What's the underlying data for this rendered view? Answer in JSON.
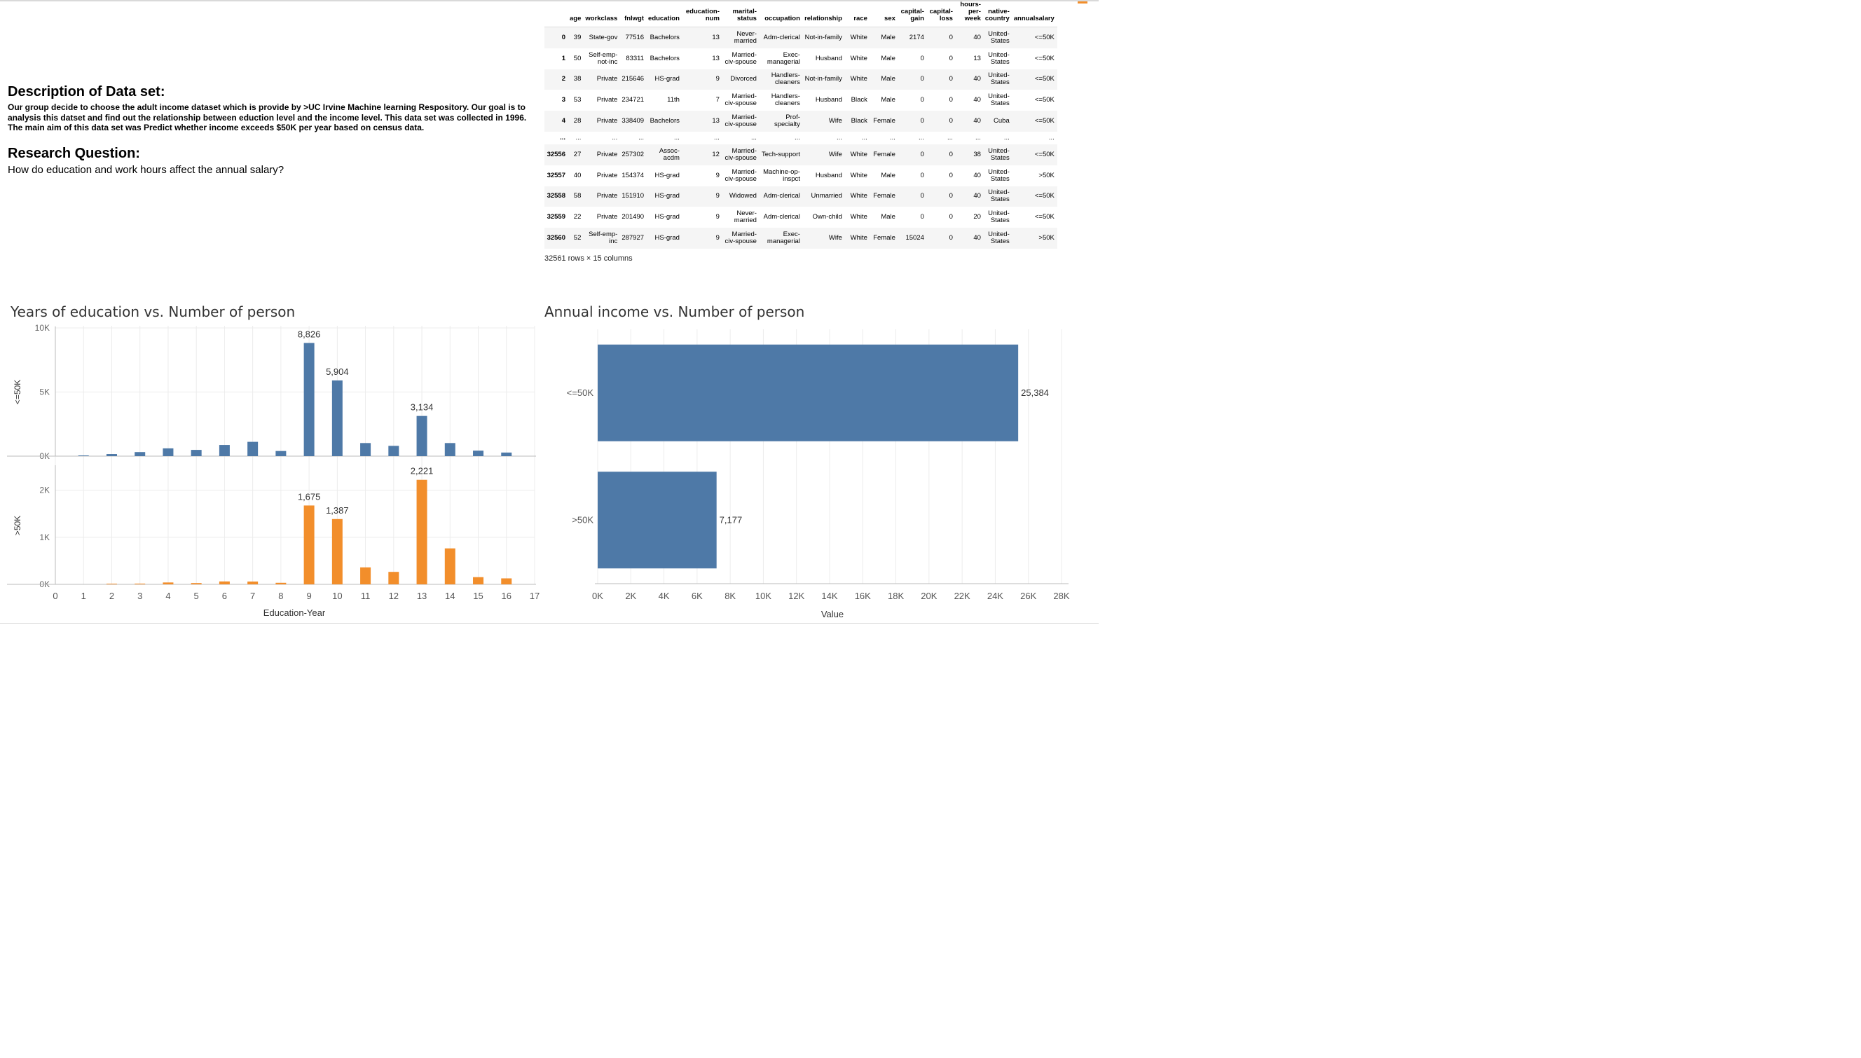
{
  "description": {
    "heading": "Description of Data set:",
    "body": "Our group decide to choose the adult income dataset which is provide by >UC Irvine Machine learning Respository. Our goal is to analysis this datset and find out the relationship between eduction level and the income level.  This data set was collected in 1996. The main aim of this data set was Predict whether income exceeds $50K per year based on census data.",
    "rq_heading": "Research Question:",
    "rq_body": "How do education and work hours affect the annual salary?"
  },
  "table": {
    "columns": [
      "",
      "age",
      "workclass",
      "fnlwgt",
      "education",
      "education-num",
      "marital-status",
      "occupation",
      "relationship",
      "race",
      "sex",
      "capital-gain",
      "capital-loss",
      "hours-per-week",
      "native-country",
      "annualsalary"
    ],
    "rows": [
      [
        "0",
        "39",
        "State-gov",
        "77516",
        "Bachelors",
        "13",
        "Never-married",
        "Adm-clerical",
        "Not-in-family",
        "White",
        "Male",
        "2174",
        "0",
        "40",
        "United-States",
        "<=50K"
      ],
      [
        "1",
        "50",
        "Self-emp-not-inc",
        "83311",
        "Bachelors",
        "13",
        "Married-civ-spouse",
        "Exec-managerial",
        "Husband",
        "White",
        "Male",
        "0",
        "0",
        "13",
        "United-States",
        "<=50K"
      ],
      [
        "2",
        "38",
        "Private",
        "215646",
        "HS-grad",
        "9",
        "Divorced",
        "Handlers-cleaners",
        "Not-in-family",
        "White",
        "Male",
        "0",
        "0",
        "40",
        "United-States",
        "<=50K"
      ],
      [
        "3",
        "53",
        "Private",
        "234721",
        "11th",
        "7",
        "Married-civ-spouse",
        "Handlers-cleaners",
        "Husband",
        "Black",
        "Male",
        "0",
        "0",
        "40",
        "United-States",
        "<=50K"
      ],
      [
        "4",
        "28",
        "Private",
        "338409",
        "Bachelors",
        "13",
        "Married-civ-spouse",
        "Prof-specialty",
        "Wife",
        "Black",
        "Female",
        "0",
        "0",
        "40",
        "Cuba",
        "<=50K"
      ],
      [
        "...",
        "...",
        "...",
        "...",
        "...",
        "...",
        "...",
        "...",
        "...",
        "...",
        "...",
        "...",
        "...",
        "...",
        "...",
        "..."
      ],
      [
        "32556",
        "27",
        "Private",
        "257302",
        "Assoc-acdm",
        "12",
        "Married-civ-spouse",
        "Tech-support",
        "Wife",
        "White",
        "Female",
        "0",
        "0",
        "38",
        "United-States",
        "<=50K"
      ],
      [
        "32557",
        "40",
        "Private",
        "154374",
        "HS-grad",
        "9",
        "Married-civ-spouse",
        "Machine-op-inspct",
        "Husband",
        "White",
        "Male",
        "0",
        "0",
        "40",
        "United-States",
        ">50K"
      ],
      [
        "32558",
        "58",
        "Private",
        "151910",
        "HS-grad",
        "9",
        "Widowed",
        "Adm-clerical",
        "Unmarried",
        "White",
        "Female",
        "0",
        "0",
        "40",
        "United-States",
        "<=50K"
      ],
      [
        "32559",
        "22",
        "Private",
        "201490",
        "HS-grad",
        "9",
        "Never-married",
        "Adm-clerical",
        "Own-child",
        "White",
        "Male",
        "0",
        "0",
        "20",
        "United-States",
        "<=50K"
      ],
      [
        "32560",
        "52",
        "Self-emp-inc",
        "287927",
        "HS-grad",
        "9",
        "Married-civ-spouse",
        "Exec-managerial",
        "Wife",
        "White",
        "Female",
        "15024",
        "0",
        "40",
        "United-States",
        ">50K"
      ]
    ],
    "row_count": "32561 rows × 15 columns"
  },
  "colors": {
    "blue": "#4e79a7",
    "orange": "#f28e2b",
    "grid": "#ececec",
    "axis": "#666666"
  },
  "chart_data": [
    {
      "type": "bar",
      "title": "Years of  education vs. Number of person",
      "xlabel": "Education-Year",
      "x_ticks": [
        "0",
        "1",
        "2",
        "3",
        "4",
        "5",
        "6",
        "7",
        "8",
        "9",
        "10",
        "11",
        "12",
        "13",
        "14",
        "15",
        "16",
        "17"
      ],
      "xlim": [
        0,
        17
      ],
      "series": [
        {
          "name": "<=50K",
          "x": [
            1,
            2,
            3,
            4,
            5,
            6,
            7,
            8,
            9,
            10,
            11,
            12,
            13,
            14,
            15,
            16
          ],
          "values": [
            51,
            162,
            317,
            606,
            487,
            871,
            1115,
            400,
            8826,
            5904,
            1021,
            802,
            3134,
            1021,
            428,
            280
          ],
          "ylim": [
            0,
            10000
          ],
          "y_ticks": [
            "0K",
            "5K",
            "10K"
          ],
          "labels": {
            "9": "8,826",
            "10": "5,904",
            "13": "3,134"
          }
        },
        {
          "name": ">50K",
          "x": [
            1,
            2,
            3,
            4,
            5,
            6,
            7,
            8,
            9,
            10,
            11,
            12,
            13,
            14,
            15,
            16
          ],
          "values": [
            0,
            6,
            16,
            40,
            27,
            62,
            60,
            33,
            1675,
            1387,
            361,
            265,
            2221,
            764,
            153,
            127
          ],
          "ylim": [
            0,
            2500
          ],
          "y_ticks": [
            "0K",
            "1K",
            "2K"
          ],
          "labels": {
            "9": "1,675",
            "10": "1,387",
            "13": "2,221"
          }
        }
      ],
      "grid": true
    },
    {
      "type": "bar",
      "orientation": "horizontal",
      "title": "Annual income vs. Number of person",
      "xlabel": "Value",
      "categories": [
        "<=50K",
        ">50K"
      ],
      "values": [
        25384,
        7177
      ],
      "value_labels": [
        "25,384",
        "7,177"
      ],
      "xlim": [
        0,
        28000
      ],
      "x_ticks": [
        "0K",
        "2K",
        "4K",
        "6K",
        "8K",
        "10K",
        "12K",
        "14K",
        "16K",
        "18K",
        "20K",
        "22K",
        "24K",
        "26K",
        "28K"
      ],
      "grid": true
    }
  ]
}
